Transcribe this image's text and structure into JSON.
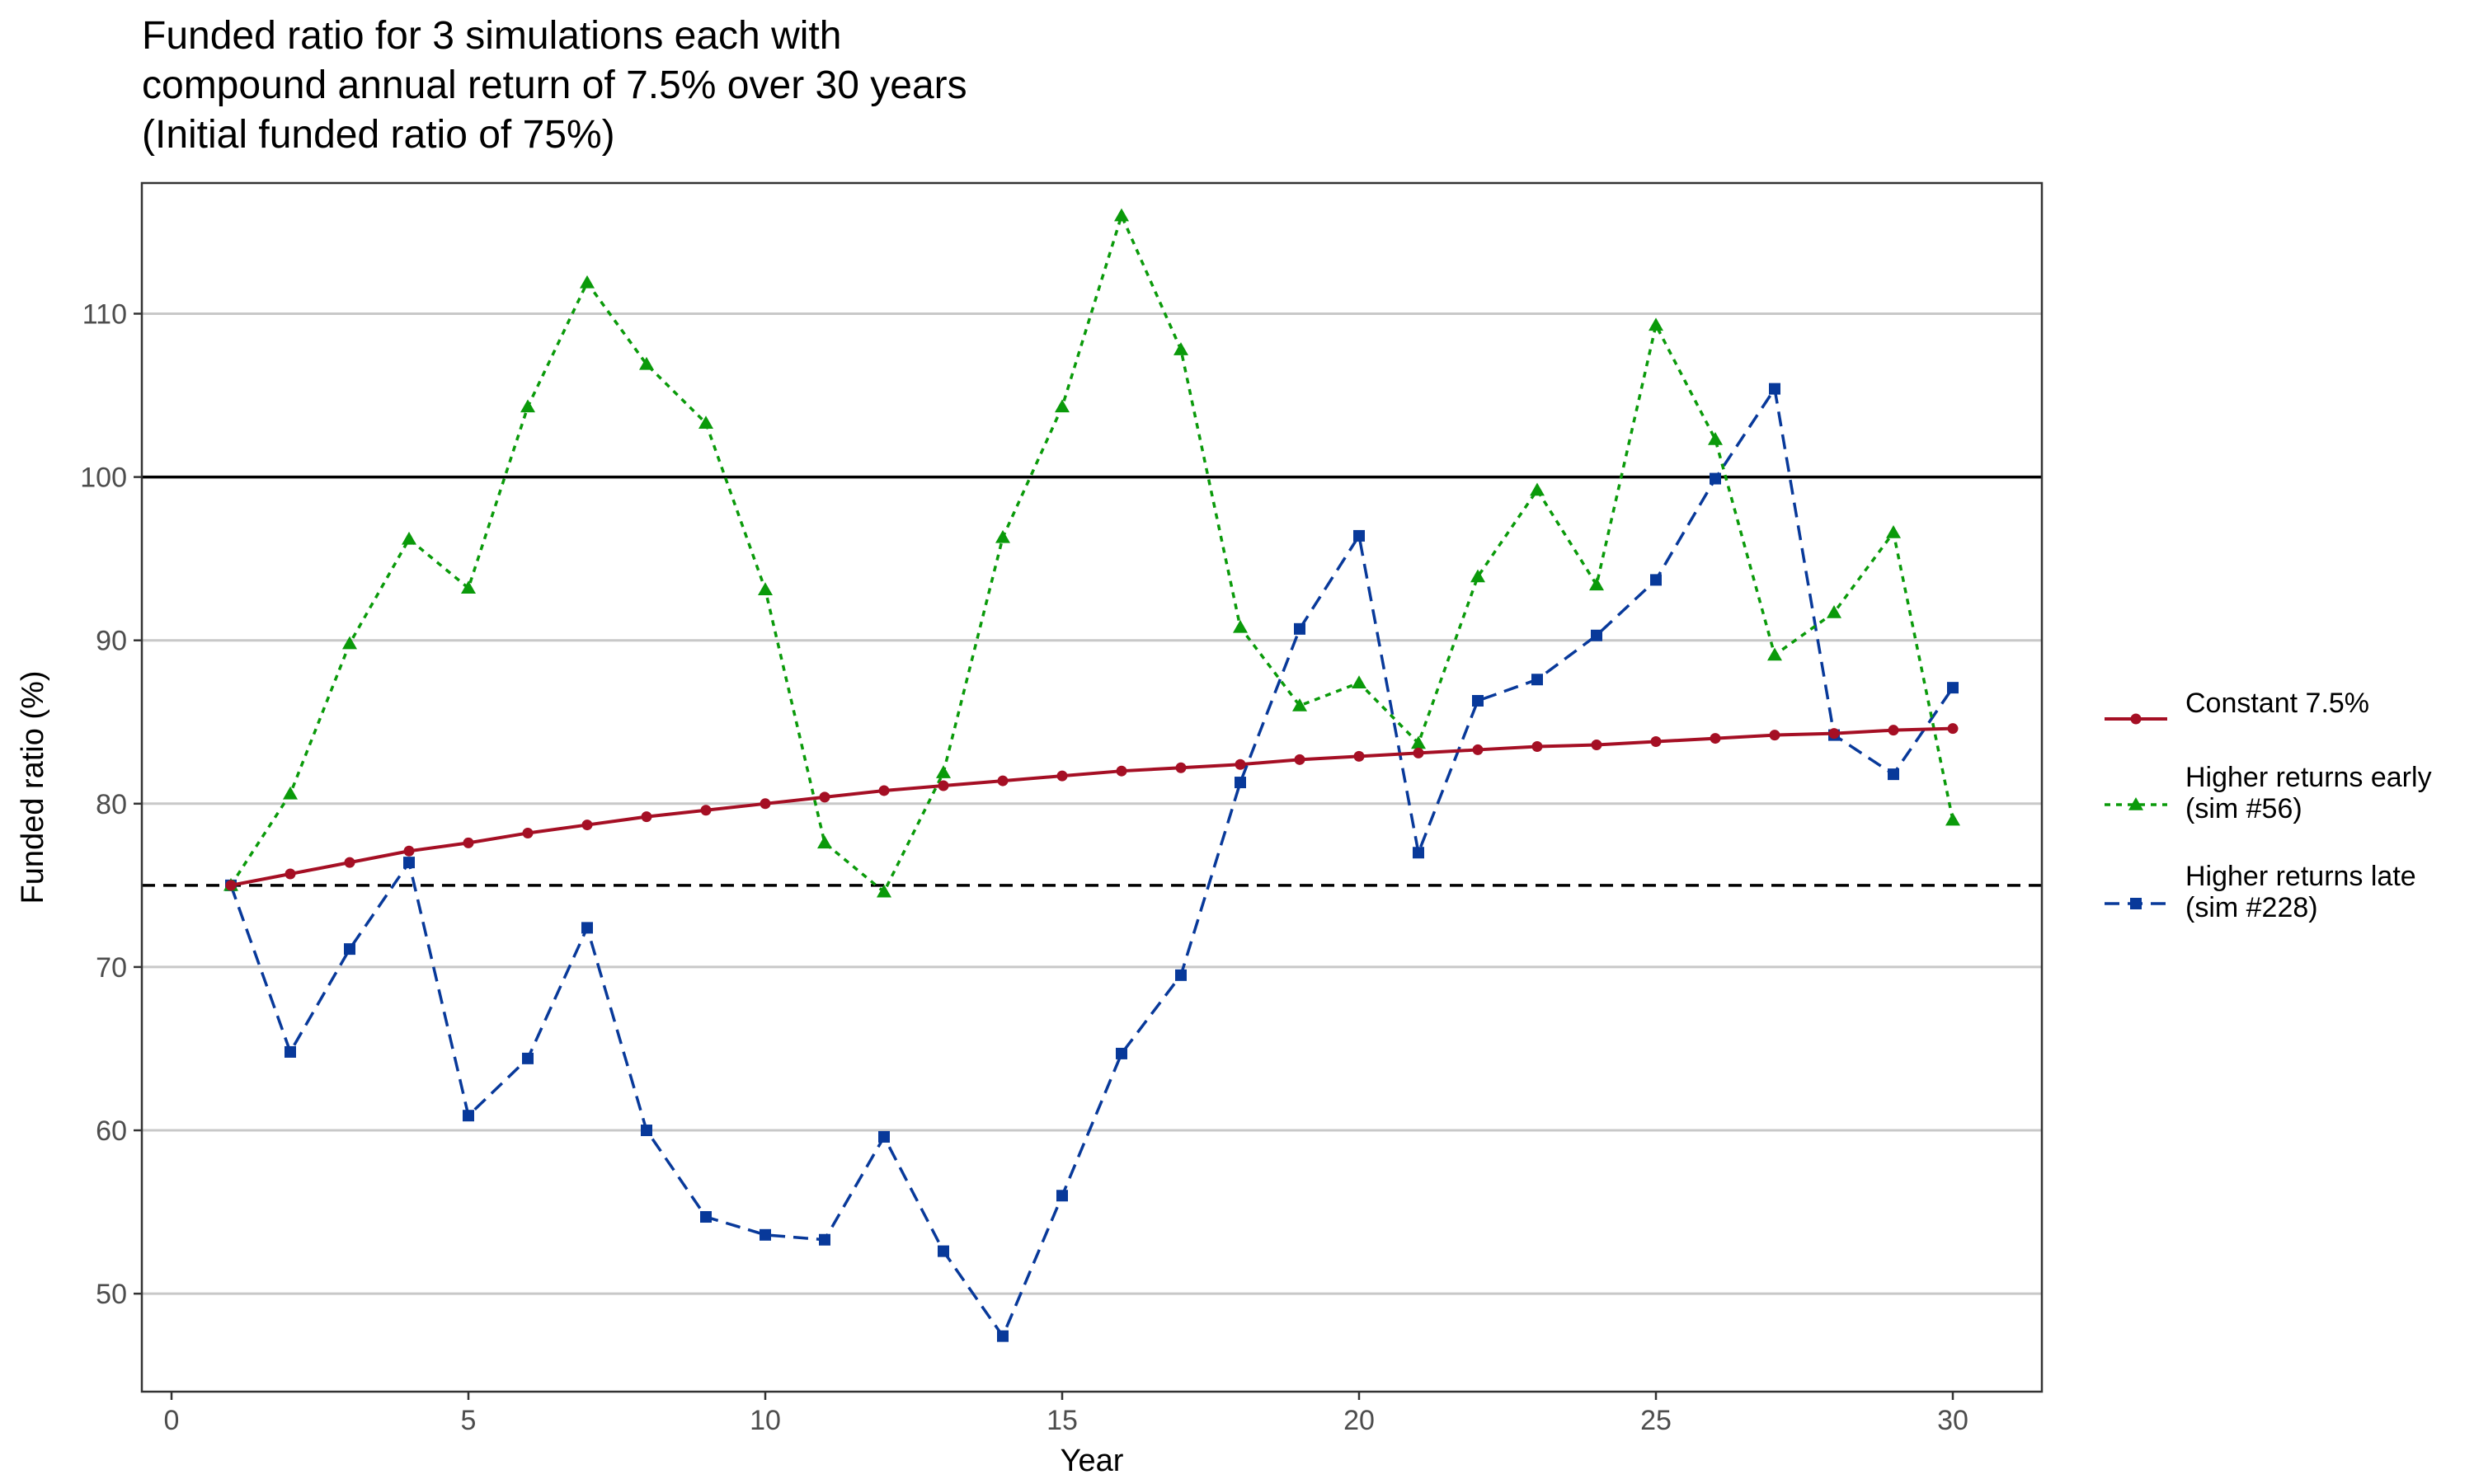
{
  "chart_data": {
    "type": "line",
    "title_lines": [
      "Funded ratio for 3 simulations each with",
      "compound annual return of 7.5% over 30 years",
      "(Initial funded ratio of 75%)"
    ],
    "xlabel": "Year",
    "ylabel": "Funded ratio (%)",
    "xlim": [
      -0.5,
      31.5
    ],
    "ylim": [
      44,
      118
    ],
    "x_ticks": [
      0,
      5,
      10,
      15,
      20,
      25,
      30
    ],
    "y_ticks": [
      50,
      60,
      70,
      80,
      90,
      100,
      110
    ],
    "grid": "horizontal",
    "legend_position": "right",
    "reference_lines": [
      {
        "y": 100,
        "style": "solid",
        "color": "#000000"
      },
      {
        "y": 75,
        "style": "dashed",
        "color": "#000000"
      }
    ],
    "x": [
      1,
      2,
      3,
      4,
      5,
      6,
      7,
      8,
      9,
      10,
      11,
      12,
      13,
      14,
      15,
      16,
      17,
      18,
      19,
      20,
      21,
      22,
      23,
      24,
      25,
      26,
      27,
      28,
      29,
      30
    ],
    "series": [
      {
        "name": "Constant 7.5%",
        "color": "#a50f24",
        "line_style": "solid",
        "marker": "circle",
        "values": [
          75.0,
          75.7,
          76.4,
          77.1,
          77.6,
          78.2,
          78.7,
          79.2,
          79.6,
          80.0,
          80.4,
          80.8,
          81.1,
          81.4,
          81.7,
          82.0,
          82.2,
          82.4,
          82.7,
          82.9,
          83.1,
          83.3,
          83.5,
          83.6,
          83.8,
          84.0,
          84.2,
          84.3,
          84.5,
          84.6
        ]
      },
      {
        "name": "Higher returns early\n(sim #56)",
        "color": "#0a9a0a",
        "line_style": "dotted",
        "marker": "triangle",
        "values": [
          75.0,
          80.6,
          89.8,
          96.2,
          93.2,
          104.3,
          111.9,
          106.9,
          103.3,
          93.1,
          77.6,
          74.6,
          81.9,
          96.3,
          104.3,
          116.0,
          107.8,
          90.8,
          86.0,
          87.4,
          83.7,
          93.9,
          99.2,
          93.4,
          109.3,
          102.3,
          89.1,
          91.7,
          96.6,
          79.0
        ]
      },
      {
        "name": "Higher returns late\n(sim #228)",
        "color": "#08399a",
        "line_style": "dashed",
        "marker": "square",
        "values": [
          75.0,
          64.8,
          71.1,
          76.4,
          60.9,
          64.4,
          72.4,
          60.0,
          54.7,
          53.6,
          53.3,
          59.6,
          52.6,
          47.4,
          56.0,
          64.7,
          69.5,
          81.3,
          90.7,
          96.4,
          77.0,
          86.3,
          87.6,
          90.3,
          93.7,
          99.9,
          105.4,
          84.2,
          81.8,
          87.1
        ]
      }
    ]
  }
}
